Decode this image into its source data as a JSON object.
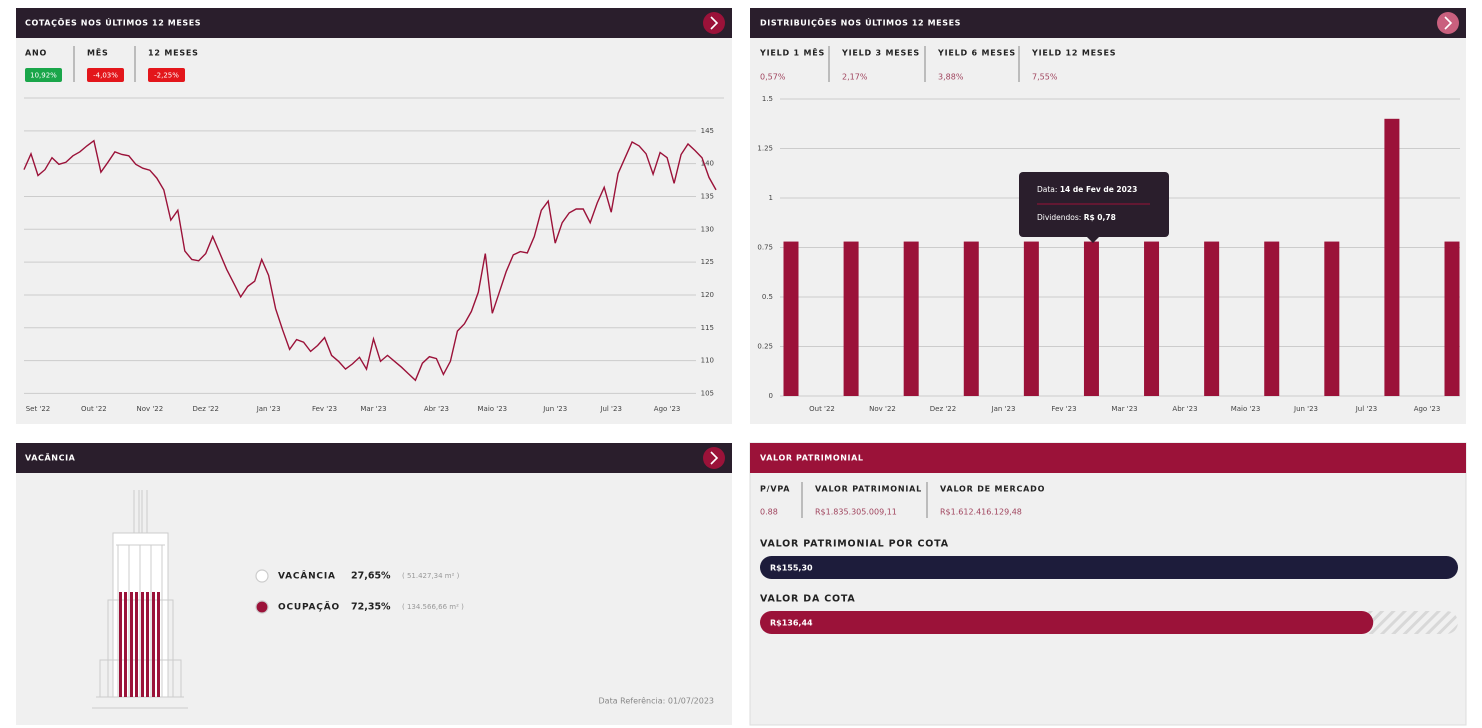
{
  "chart_data": [
    {
      "type": "line",
      "title": "COTAÇÕES NOS ÚLTIMOS 12 MESES",
      "color": "#9b1239",
      "categories": [
        null,
        null,
        "Set '22",
        null,
        null,
        null,
        null,
        null,
        null,
        null,
        "Out '22",
        null,
        null,
        null,
        null,
        null,
        null,
        null,
        "Nov '22",
        null,
        null,
        null,
        null,
        null,
        null,
        null,
        "Dez '22",
        null,
        null,
        null,
        null,
        null,
        null,
        null,
        null,
        "Jan '23",
        null,
        null,
        null,
        null,
        null,
        null,
        null,
        "Fev '23",
        null,
        null,
        null,
        null,
        null,
        null,
        "Mar '23",
        null,
        null,
        null,
        null,
        null,
        null,
        null,
        null,
        "Abr '23",
        null,
        null,
        null,
        null,
        null,
        null,
        null,
        "Maio '23",
        null,
        null,
        null,
        null,
        null,
        null,
        null,
        null,
        "Jun '23",
        null,
        null,
        null,
        null,
        null,
        null,
        null,
        "Jul '23",
        null,
        null,
        null,
        null,
        null,
        null,
        null,
        "Ago '23",
        null,
        null,
        null,
        null,
        null,
        null,
        null
      ],
      "values": [
        139.1,
        141.5,
        138.2,
        139.1,
        140.9,
        139.9,
        140.2,
        141.2,
        141.8,
        142.7,
        143.5,
        138.7,
        140.2,
        141.8,
        141.4,
        141.2,
        139.9,
        139.3,
        139.0,
        137.8,
        136.0,
        131.4,
        132.9,
        126.7,
        125.4,
        125.2,
        126.3,
        128.9,
        126.4,
        123.9,
        121.8,
        119.7,
        121.3,
        122.1,
        125.4,
        123.0,
        117.9,
        114.7,
        111.7,
        113.2,
        112.8,
        111.4,
        112.3,
        113.5,
        110.8,
        109.9,
        108.7,
        109.5,
        110.5,
        108.7,
        113.3,
        109.9,
        110.8,
        109.9,
        109.0,
        108.0,
        107.0,
        109.6,
        110.6,
        110.3,
        107.9,
        109.9,
        114.5,
        115.6,
        117.5,
        120.4,
        126.3,
        117.2,
        120.4,
        123.6,
        126.1,
        126.6,
        126.4,
        128.9,
        132.9,
        134.3,
        127.9,
        131.0,
        132.5,
        133.1,
        133.1,
        131.0,
        134.0,
        136.4,
        132.6,
        138.5,
        140.9,
        143.3,
        142.7,
        141.5,
        138.4,
        141.7,
        140.9,
        137.0,
        141.4,
        143.0,
        142.0,
        140.9,
        137.9,
        136.0
      ],
      "ylim": [
        104,
        150
      ],
      "yticks": [
        105,
        110,
        115,
        120,
        125,
        130,
        135,
        140,
        145
      ],
      "grid": true
    },
    {
      "type": "bar",
      "title": "DISTRIBUIÇÕES NOS ÚLTIMOS 12 MESES",
      "color": "#9b1239",
      "categories": [
        null,
        null,
        null,
        null,
        null,
        null,
        null,
        null,
        null,
        null,
        null,
        null
      ],
      "values": [
        0.78,
        0.78,
        0.78,
        0.78,
        0.78,
        0.78,
        0.78,
        0.78,
        0.78,
        0.78,
        1.4,
        0.78
      ],
      "xtick_labels": [
        "Out '22",
        "Nov '22",
        "Dez '22",
        "Jan '23",
        "Fev '23",
        "Mar '23",
        "Abr '23",
        "Maio '23",
        "Jun '23",
        "Jul '23",
        "Ago '23"
      ],
      "ylim": [
        0,
        1.5
      ],
      "yticks": [
        0,
        0.25,
        0.5,
        0.75,
        1,
        1.25,
        1.5
      ],
      "grid": true,
      "tooltip": {
        "date_label": "Data:",
        "date": "14 de Fev de 2023",
        "value_label": "Dividendos:",
        "value": "R$ 0,78"
      }
    }
  ],
  "quote_stats": [
    {
      "label": "ANO",
      "value": "10,92%",
      "color": "#1aa64a"
    },
    {
      "label": "MÊS",
      "value": "-4,03%",
      "color": "#e3161b"
    },
    {
      "label": "12 MESES",
      "value": "-2,25%",
      "color": "#e3161b"
    }
  ],
  "yield_stats": [
    {
      "label": "YIELD 1 MÊS",
      "value": "0,57%"
    },
    {
      "label": "YIELD 3 MESES",
      "value": "2,17%"
    },
    {
      "label": "YIELD 6 MESES",
      "value": "3,88%"
    },
    {
      "label": "YIELD 12 MESES",
      "value": "7,55%"
    }
  ],
  "vacancy": {
    "title": "VACÂNCIA",
    "items": [
      {
        "label": "VACÂNCIA",
        "percent": "27,65%",
        "area": "( 51.427,34 m² )",
        "color": "#ffffff"
      },
      {
        "label": "OCUPAÇÃO",
        "percent": "72,35%",
        "area": "( 134.566,66 m² )",
        "color": "#9b1239"
      }
    ],
    "reference": "Data Referência: 01/07/2023"
  },
  "equity": {
    "title": "VALOR PATRIMONIAL",
    "stats": [
      {
        "label": "P/VPA",
        "value": "0.88"
      },
      {
        "label": "VALOR PATRIMONIAL",
        "value": "R$1.835.305.009,11"
      },
      {
        "label": "VALOR DE MERCADO",
        "value": "R$1.612.416.129,48"
      }
    ],
    "bars": [
      {
        "label": "VALOR PATRIMONIAL POR COTA",
        "value": 155.3,
        "value_label": "R$155,30",
        "color": "#1d1c3b"
      },
      {
        "label": "VALOR DA COTA",
        "value": 136.44,
        "value_label": "R$136,44",
        "color": "#9b1239"
      }
    ]
  }
}
